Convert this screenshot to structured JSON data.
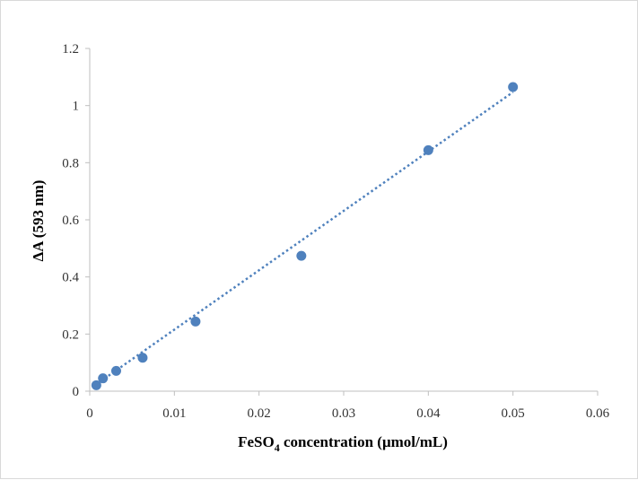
{
  "chart_data": {
    "type": "scatter",
    "title": "",
    "xlabel": {
      "prefix": "FeSO",
      "subscript": "4",
      "suffix": " concentration (μmol/mL)"
    },
    "ylabel": "ΔA (593 nm)",
    "xlim": [
      0,
      0.06
    ],
    "ylim": [
      0,
      1.2
    ],
    "x_ticks": [
      "0",
      "0.01",
      "0.02",
      "0.03",
      "0.04",
      "0.05",
      "0.06"
    ],
    "y_ticks": [
      "0",
      "0.2",
      "0.4",
      "0.6",
      "0.8",
      "1",
      "1.2"
    ],
    "grid": false,
    "legend": "none",
    "series": [
      {
        "color": "#4f81bd",
        "points": [
          {
            "x": 0.00078,
            "y": 0.021
          },
          {
            "x": 0.00156,
            "y": 0.045
          },
          {
            "x": 0.003125,
            "y": 0.071
          },
          {
            "x": 0.00625,
            "y": 0.117
          },
          {
            "x": 0.0125,
            "y": 0.244
          },
          {
            "x": 0.025,
            "y": 0.474
          },
          {
            "x": 0.04,
            "y": 0.844
          },
          {
            "x": 0.05,
            "y": 1.065
          }
        ]
      }
    ],
    "trendline": {
      "type": "linear",
      "style": "dotted",
      "color": "#4f81bd",
      "from": {
        "x": 0.00078,
        "y": 0.024
      },
      "to": {
        "x": 0.05,
        "y": 1.047
      }
    }
  }
}
